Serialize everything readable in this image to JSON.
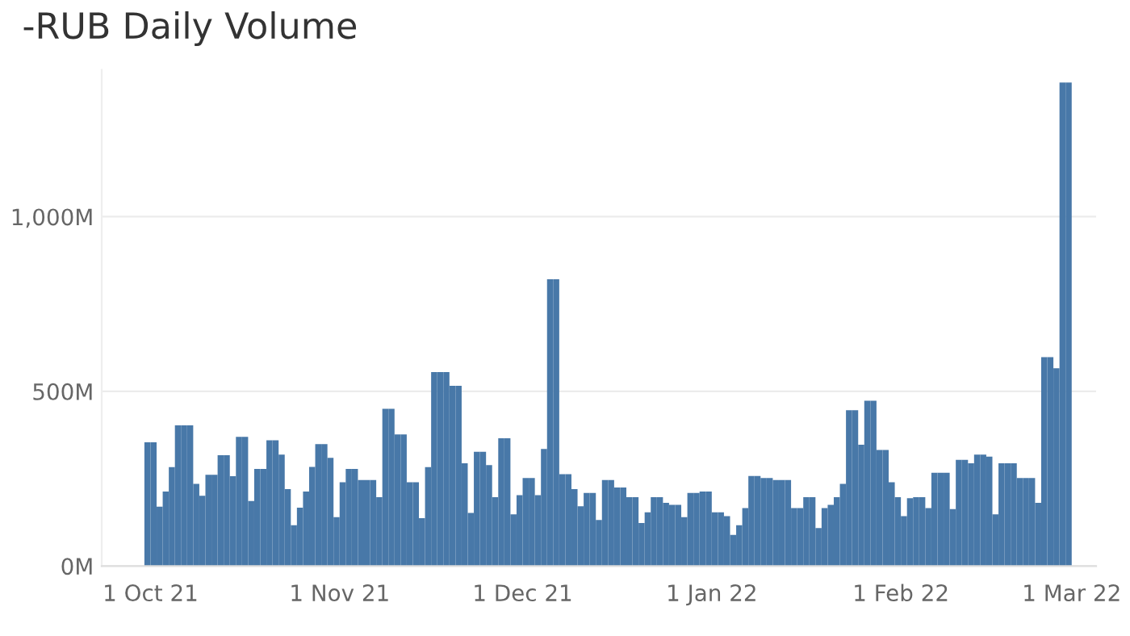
{
  "chart_data": {
    "type": "bar",
    "title": "-RUB Daily Volume",
    "x": [
      "2021-09-30",
      "2021-10-01",
      "2021-10-02",
      "2021-10-03",
      "2021-10-04",
      "2021-10-05",
      "2021-10-06",
      "2021-10-07",
      "2021-10-08",
      "2021-10-09",
      "2021-10-10",
      "2021-10-11",
      "2021-10-12",
      "2021-10-13",
      "2021-10-14",
      "2021-10-15",
      "2021-10-16",
      "2021-10-17",
      "2021-10-18",
      "2021-10-19",
      "2021-10-20",
      "2021-10-21",
      "2021-10-22",
      "2021-10-23",
      "2021-10-24",
      "2021-10-25",
      "2021-10-26",
      "2021-10-27",
      "2021-10-28",
      "2021-10-29",
      "2021-10-30",
      "2021-10-31",
      "2021-11-01",
      "2021-11-02",
      "2021-11-03",
      "2021-11-04",
      "2021-11-05",
      "2021-11-06",
      "2021-11-07",
      "2021-11-08",
      "2021-11-09",
      "2021-11-10",
      "2021-11-11",
      "2021-11-12",
      "2021-11-13",
      "2021-11-14",
      "2021-11-15",
      "2021-11-16",
      "2021-11-17",
      "2021-11-18",
      "2021-11-19",
      "2021-11-20",
      "2021-11-21",
      "2021-11-22",
      "2021-11-23",
      "2021-11-24",
      "2021-11-25",
      "2021-11-26",
      "2021-11-27",
      "2021-11-28",
      "2021-11-29",
      "2021-11-30",
      "2021-12-01",
      "2021-12-02",
      "2021-12-03",
      "2021-12-04",
      "2021-12-05",
      "2021-12-06",
      "2021-12-07",
      "2021-12-08",
      "2021-12-09",
      "2021-12-10",
      "2021-12-11",
      "2021-12-12",
      "2021-12-13",
      "2021-12-14",
      "2021-12-15",
      "2021-12-16",
      "2021-12-17",
      "2021-12-18",
      "2021-12-19",
      "2021-12-20",
      "2021-12-21",
      "2021-12-22",
      "2021-12-23",
      "2021-12-24",
      "2021-12-25",
      "2021-12-26",
      "2021-12-27",
      "2021-12-28",
      "2021-12-29",
      "2021-12-30",
      "2021-12-31",
      "2022-01-01",
      "2022-01-02",
      "2022-01-03",
      "2022-01-04",
      "2022-01-05",
      "2022-01-06",
      "2022-01-07",
      "2022-01-08",
      "2022-01-09",
      "2022-01-10",
      "2022-01-11",
      "2022-01-12",
      "2022-01-13",
      "2022-01-14",
      "2022-01-15",
      "2022-01-16",
      "2022-01-17",
      "2022-01-18",
      "2022-01-19",
      "2022-01-20",
      "2022-01-21",
      "2022-01-22",
      "2022-01-23",
      "2022-01-24",
      "2022-01-25",
      "2022-01-26",
      "2022-01-27",
      "2022-01-28",
      "2022-01-29",
      "2022-01-30",
      "2022-01-31",
      "2022-02-01",
      "2022-02-02",
      "2022-02-03",
      "2022-02-04",
      "2022-02-05",
      "2022-02-06",
      "2022-02-07",
      "2022-02-08",
      "2022-02-09",
      "2022-02-10",
      "2022-02-11",
      "2022-02-12",
      "2022-02-13",
      "2022-02-14",
      "2022-02-15",
      "2022-02-16",
      "2022-02-17",
      "2022-02-18",
      "2022-02-19",
      "2022-02-20",
      "2022-02-21",
      "2022-02-22",
      "2022-02-23",
      "2022-02-24",
      "2022-02-25",
      "2022-02-26",
      "2022-02-27",
      "2022-02-28"
    ],
    "values": [
      354,
      354,
      170,
      213,
      283,
      403,
      403,
      403,
      235,
      201,
      261,
      261,
      317,
      317,
      257,
      370,
      370,
      186,
      278,
      278,
      360,
      360,
      319,
      220,
      117,
      167,
      213,
      284,
      349,
      349,
      310,
      140,
      240,
      278,
      278,
      246,
      246,
      246,
      197,
      450,
      450,
      377,
      377,
      240,
      240,
      137,
      283,
      555,
      555,
      555,
      516,
      516,
      294,
      152,
      327,
      327,
      289,
      197,
      366,
      366,
      148,
      203,
      252,
      252,
      203,
      335,
      821,
      821,
      263,
      263,
      220,
      171,
      209,
      209,
      132,
      246,
      246,
      225,
      225,
      197,
      197,
      123,
      154,
      197,
      197,
      181,
      175,
      175,
      140,
      209,
      209,
      213,
      213,
      154,
      154,
      143,
      89,
      117,
      166,
      258,
      258,
      252,
      252,
      246,
      246,
      246,
      166,
      166,
      197,
      197,
      109,
      166,
      175,
      197,
      235,
      446,
      446,
      347,
      473,
      473,
      332,
      332,
      240,
      197,
      143,
      194,
      197,
      197,
      166,
      267,
      267,
      267,
      163,
      304,
      304,
      294,
      319,
      319,
      313,
      148,
      294,
      294,
      294,
      252,
      252,
      252,
      181,
      598,
      598,
      566,
      1384,
      1384
    ],
    "color": "#4878a8",
    "xlim": [
      "2021-09-23",
      "2022-03-05"
    ],
    "xticks": [
      {
        "value": "2021-10-01",
        "label": "1 Oct 21"
      },
      {
        "value": "2021-11-01",
        "label": "1 Nov 21"
      },
      {
        "value": "2021-12-01",
        "label": "1 Dec 21"
      },
      {
        "value": "2022-01-01",
        "label": "1 Jan 22"
      },
      {
        "value": "2022-02-01",
        "label": "1 Feb 22"
      },
      {
        "value": "2022-03-01",
        "label": "1 Mar 22"
      }
    ],
    "ylim": [
      0,
      1420
    ],
    "yticks": [
      {
        "value": 0,
        "label": "0M"
      },
      {
        "value": 500,
        "label": "500M"
      },
      {
        "value": 1000,
        "label": "1,000M"
      }
    ],
    "grid": "y"
  }
}
